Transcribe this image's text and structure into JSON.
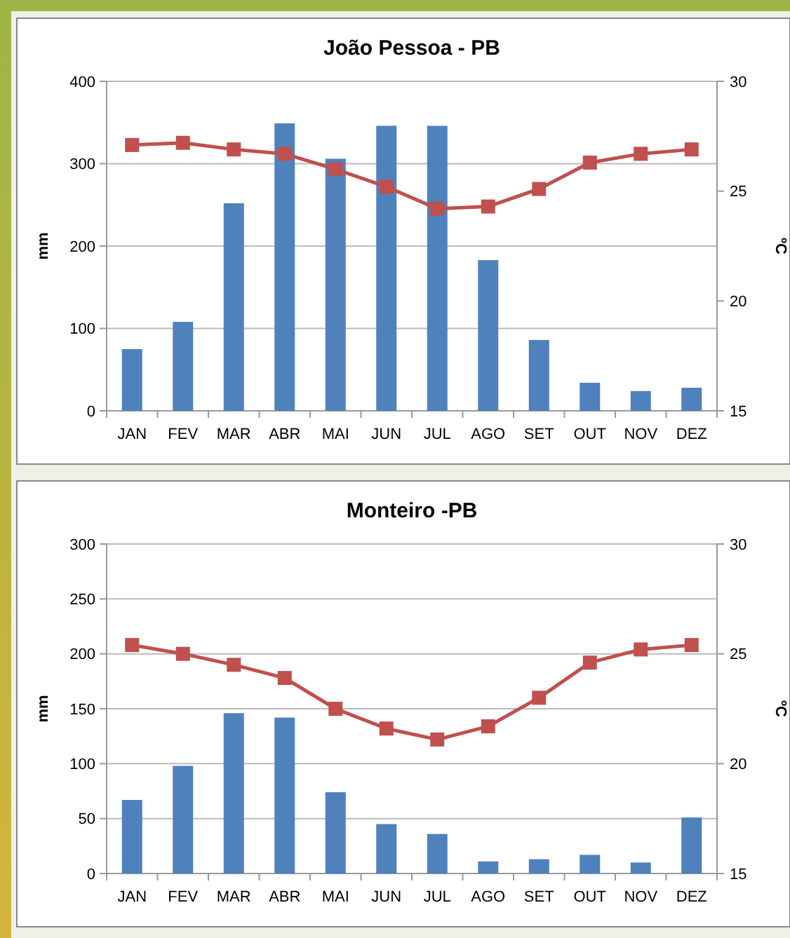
{
  "chart_data": [
    {
      "type": "bar",
      "title": "João Pessoa - PB",
      "ylabel": "mm",
      "y2label": "ºC",
      "categories": [
        "JAN",
        "FEV",
        "MAR",
        "ABR",
        "MAI",
        "JUN",
        "JUL",
        "AGO",
        "SET",
        "OUT",
        "NOV",
        "DEZ"
      ],
      "series": [
        {
          "color": "#4f81bd",
          "values": [
            75,
            108,
            252,
            349,
            306,
            346,
            346,
            183,
            86,
            34,
            24,
            28
          ]
        },
        {
          "type": "line",
          "axis": "y2",
          "color": "#c0504d",
          "marker": "square",
          "values": [
            27.1,
            27.2,
            26.9,
            26.7,
            26.0,
            25.2,
            24.2,
            24.3,
            25.1,
            26.3,
            26.7,
            26.9
          ]
        }
      ],
      "ylim": [
        0,
        400
      ],
      "yticks": [
        0,
        100,
        200,
        300,
        400
      ],
      "y2lim": [
        15,
        30
      ],
      "y2ticks": [
        15,
        20,
        25,
        30
      ],
      "grid": "y"
    },
    {
      "type": "bar",
      "title": "Monteiro -PB",
      "ylabel": "mm",
      "y2label": "ºC",
      "categories": [
        "JAN",
        "FEV",
        "MAR",
        "ABR",
        "MAI",
        "JUN",
        "JUL",
        "AGO",
        "SET",
        "OUT",
        "NOV",
        "DEZ"
      ],
      "series": [
        {
          "color": "#4f81bd",
          "values": [
            67,
            98,
            146,
            142,
            74,
            45,
            36,
            11,
            13,
            17,
            10,
            51
          ]
        },
        {
          "type": "line",
          "axis": "y2",
          "color": "#c0504d",
          "marker": "square",
          "values": [
            25.4,
            25.0,
            24.5,
            23.9,
            22.5,
            21.6,
            21.1,
            21.7,
            23.0,
            24.6,
            25.2,
            25.4
          ]
        }
      ],
      "ylim": [
        0,
        300
      ],
      "yticks": [
        0,
        50,
        100,
        150,
        200,
        250,
        300
      ],
      "y2lim": [
        15,
        30
      ],
      "y2ticks": [
        15,
        20,
        25,
        30
      ],
      "grid": "y"
    }
  ]
}
